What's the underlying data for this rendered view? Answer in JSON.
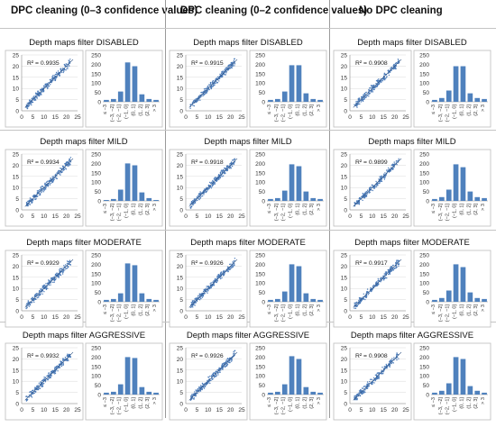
{
  "columns": [
    {
      "header": "DPC cleaning (0–3 confidence values)"
    },
    {
      "header": "DPC cleaning (0–2 confidence values)"
    },
    {
      "header": "No DPC cleaning"
    }
  ],
  "rows": [
    {
      "title": "Depth maps filter DISABLED"
    },
    {
      "title": "Depth maps filter MILD"
    },
    {
      "title": "Depth maps filter MODERATE"
    },
    {
      "title": "Depth maps filter AGGRESSIVE"
    }
  ],
  "chart_data": {
    "scatter_axes": {
      "xticks": [
        "0",
        "5",
        "10",
        "15",
        "20",
        "25"
      ],
      "yticks": [
        "0",
        "5",
        "10",
        "15",
        "20",
        "25"
      ],
      "xlim": [
        0,
        25
      ],
      "ylim": [
        0,
        25
      ]
    },
    "histogram_axes": {
      "categories": [
        "≤ −3",
        "(−3, −2]",
        "(−2, −1]",
        "(−1, 0]",
        "(0, 1]",
        "(1, 2]",
        "(2, 3]",
        "> 3"
      ],
      "yticks": [
        "0",
        "50",
        "100",
        "150",
        "200",
        "250"
      ],
      "ylim": [
        0,
        250
      ]
    },
    "panels": [
      {
        "column": 0,
        "row": 0,
        "type": "scatter+bar",
        "r2": "R² = 0.9935",
        "hist": [
          10,
          15,
          55,
          210,
          190,
          40,
          15,
          10
        ]
      },
      {
        "column": 1,
        "row": 0,
        "type": "scatter+bar",
        "r2": "R² = 0.9915",
        "hist": [
          10,
          15,
          55,
          195,
          195,
          45,
          15,
          10
        ]
      },
      {
        "column": 2,
        "row": 0,
        "type": "scatter+bar",
        "r2": "R² = 0.9908",
        "hist": [
          10,
          20,
          60,
          190,
          190,
          45,
          20,
          15
        ]
      },
      {
        "column": 0,
        "row": 1,
        "type": "scatter+bar",
        "r2": "R² = 0.9934",
        "hist": [
          5,
          10,
          60,
          200,
          190,
          45,
          15,
          5
        ]
      },
      {
        "column": 1,
        "row": 1,
        "type": "scatter+bar",
        "r2": "R² = 0.9918",
        "hist": [
          10,
          15,
          55,
          195,
          185,
          50,
          15,
          10
        ]
      },
      {
        "column": 2,
        "row": 1,
        "type": "scatter+bar",
        "r2": "R² = 0.9899",
        "hist": [
          10,
          20,
          60,
          195,
          180,
          50,
          20,
          15
        ]
      },
      {
        "column": 0,
        "row": 2,
        "type": "scatter+bar",
        "r2": "R² = 0.9929",
        "hist": [
          10,
          15,
          45,
          205,
          195,
          45,
          15,
          10
        ]
      },
      {
        "column": 1,
        "row": 2,
        "type": "scatter+bar",
        "r2": "R² = 0.9926",
        "hist": [
          10,
          15,
          55,
          200,
          190,
          45,
          15,
          10
        ]
      },
      {
        "column": 2,
        "row": 2,
        "type": "scatter+bar",
        "r2": "R² = 0.9917",
        "hist": [
          10,
          20,
          60,
          200,
          185,
          50,
          20,
          15
        ]
      },
      {
        "column": 0,
        "row": 3,
        "type": "scatter+bar",
        "r2": "R² = 0.9932",
        "hist": [
          10,
          15,
          55,
          200,
          195,
          40,
          15,
          10
        ]
      },
      {
        "column": 1,
        "row": 3,
        "type": "scatter+bar",
        "r2": "R² = 0.9926",
        "hist": [
          10,
          15,
          55,
          205,
          190,
          40,
          15,
          10
        ]
      },
      {
        "column": 2,
        "row": 3,
        "type": "scatter+bar",
        "r2": "R² = 0.9908",
        "hist": [
          10,
          20,
          60,
          200,
          190,
          45,
          20,
          10
        ]
      }
    ]
  },
  "colors": {
    "bar": "#4f81bd",
    "point": "#4a7ab8",
    "frame": "#bdbdbd",
    "grid": "#d9d9d9"
  }
}
